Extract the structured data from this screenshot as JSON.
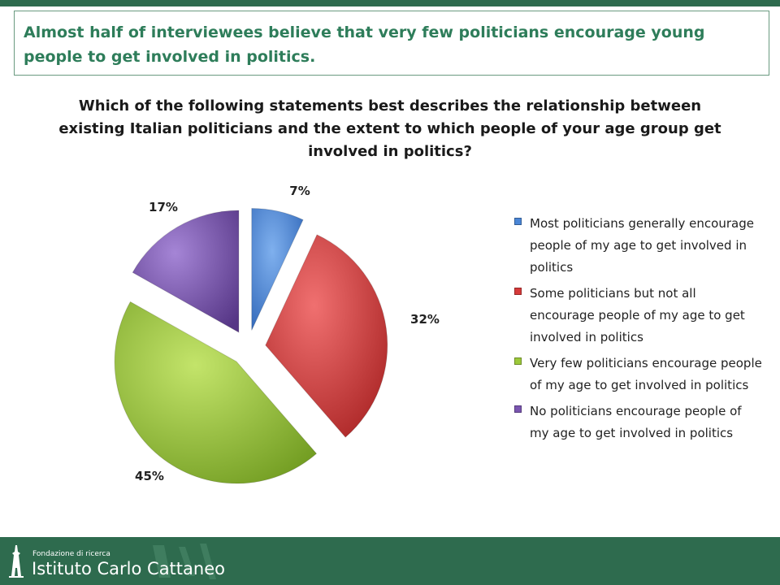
{
  "headline": "Almost half of interviewees believe that very few politicians encourage young people to get involved in politics.",
  "chart_data": {
    "type": "pie",
    "title": "Which of the following statements best describes the relationship between existing Italian politicians and the extent to which people of your age group get involved in politics?",
    "exploded": true,
    "style": "3d",
    "legend_position": "right",
    "categories": [
      "Most politicians generally encourage people of my age to get involved in politics",
      "Some politicians but not all encourage people of my age to get involved in politics",
      "Very few politicians encourage people of my age to get involved in politics",
      "No politicians encourage people of my age to get involved in politics"
    ],
    "values": [
      7,
      32,
      45,
      17
    ],
    "data_labels": [
      "7%",
      "32%",
      "45%",
      "17%"
    ],
    "colors": [
      "#4a86d6",
      "#d63a3a",
      "#9cc93a",
      "#7a55b0"
    ]
  },
  "footer": {
    "org_sub": "Fondazione di ricerca",
    "org_name": "Istituto Carlo Cattaneo",
    "logo_icon": "tower-icon"
  }
}
